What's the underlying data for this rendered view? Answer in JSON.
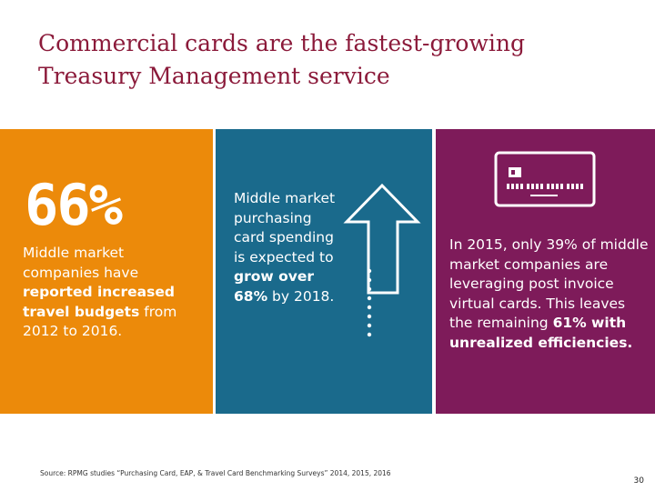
{
  "title": "Commercial cards are the fastest-growing Treasury Management service",
  "panel1": {
    "stat": "66%",
    "text_a": "Middle market companies have ",
    "text_b": "reported increased travel budgets",
    "text_c": " from 2012 to 2016."
  },
  "panel2": {
    "text_a": "Middle market purchasing card spending is expected to ",
    "text_b": "grow over 68%",
    "text_c": " by 2018."
  },
  "panel3": {
    "text_a": "In 2015, only 39% of middle market companies are leveraging post invoice virtual cards. This leaves the remaining ",
    "text_b": "61% with unrealized efficiencies."
  },
  "footer": {
    "source": "Source: RPMG studies “Purchasing Card, EAP, & Travel Card Benchmarking Surveys” 2014, 2015, 2016",
    "page_number": "30"
  },
  "colors": {
    "title": "#8b1a3a",
    "orange": "#ec8a0a",
    "teal": "#1a6a8c",
    "plum": "#7e1b5a"
  },
  "icons": [
    "up-arrow-icon",
    "credit-card-icon"
  ]
}
